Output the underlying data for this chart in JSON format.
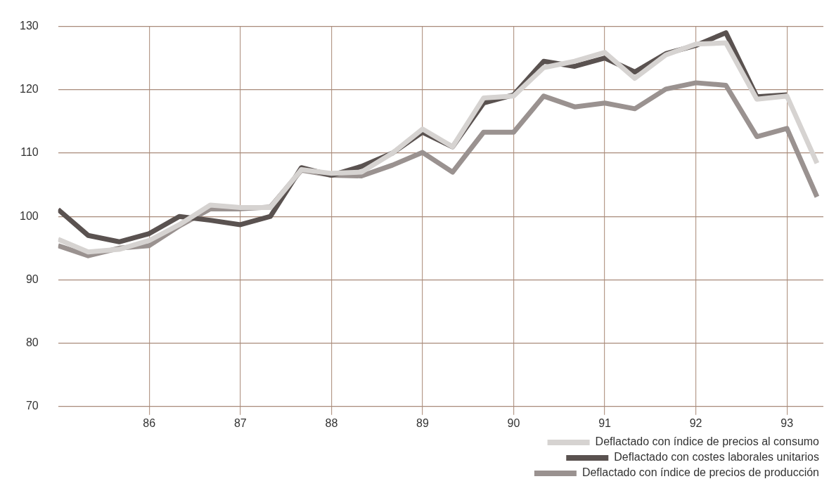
{
  "chart_data": {
    "type": "line",
    "x": [
      85,
      85.33,
      85.67,
      86,
      86.33,
      86.67,
      87,
      87.33,
      87.67,
      88,
      88.33,
      88.67,
      89,
      89.33,
      89.67,
      90,
      90.33,
      90.67,
      91,
      91.33,
      91.67,
      92,
      92.33,
      92.67,
      93,
      93.33
    ],
    "series": [
      {
        "name": "Deflactado con índice de precios al consumo",
        "color": "#d6d3d1",
        "values": [
          96.4,
          94.4,
          94.8,
          96.2,
          98.7,
          101.8,
          101.4,
          101.4,
          107.4,
          106.8,
          107,
          110,
          113.8,
          111,
          118.7,
          119,
          123.5,
          124.5,
          125.9,
          121.8,
          125.5,
          127.2,
          127.4,
          118.5,
          119,
          108.4
        ]
      },
      {
        "name": "Deflactado con costes laborales unitarios",
        "color": "#5a5250",
        "values": [
          101.1,
          97,
          96,
          97.3,
          100,
          99.4,
          98.7,
          100,
          107.7,
          106.5,
          107.9,
          110,
          113.3,
          111,
          117.9,
          119.2,
          124.5,
          123.7,
          125,
          122.8,
          125.7,
          127,
          129,
          118.9,
          119.2,
          null
        ]
      },
      {
        "name": "Deflactado con índice de precios de producción",
        "color": "#9a9290",
        "values": [
          95.4,
          93.8,
          95,
          95.4,
          98.5,
          101.2,
          101.2,
          101.5,
          107.3,
          106.5,
          106.4,
          108.1,
          110.1,
          107,
          113.3,
          113.3,
          119,
          117.3,
          117.9,
          117,
          120.1,
          121.1,
          120.7,
          112.6,
          113.9,
          103.1
        ]
      }
    ],
    "xlim": [
      85,
      93.4
    ],
    "xticks": [
      86,
      87,
      88,
      89,
      90,
      91,
      92,
      93
    ],
    "ylim": [
      70,
      130
    ],
    "yticks": [
      70,
      80,
      90,
      100,
      110,
      120,
      130
    ],
    "grid": true,
    "legend": "bottom right",
    "marker": "none",
    "line_style": "solid"
  }
}
